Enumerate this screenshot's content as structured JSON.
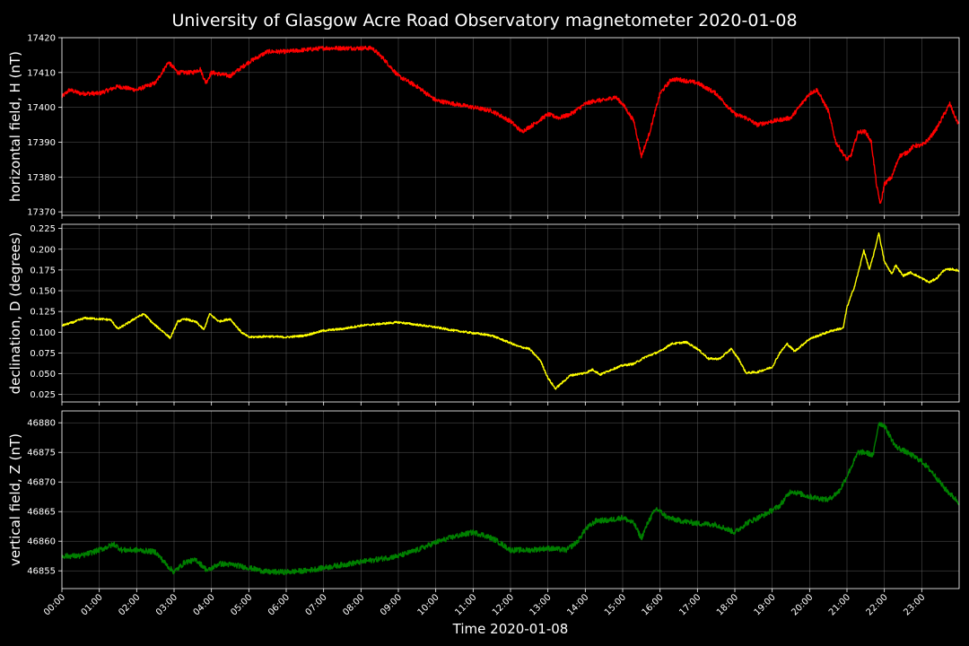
{
  "chart_data": {
    "type": "line",
    "title": "University of Glasgow Acre Road Observatory magnetometer 2020-01-08",
    "xlabel": "Time 2020-01-08",
    "x_ticks": [
      "00:00",
      "01:00",
      "02:00",
      "03:00",
      "04:00",
      "05:00",
      "06:00",
      "07:00",
      "08:00",
      "09:00",
      "10:00",
      "11:00",
      "12:00",
      "13:00",
      "14:00",
      "15:00",
      "16:00",
      "17:00",
      "18:00",
      "19:00",
      "20:00",
      "21:00",
      "22:00",
      "23:00"
    ],
    "xlim_hours": [
      0,
      24
    ],
    "grid": true,
    "panels": [
      {
        "name": "H",
        "ylabel": "horizontal field, H (nT)",
        "color": "#ff0000",
        "ylim": [
          17369,
          17420
        ],
        "yticks": [
          17370,
          17380,
          17390,
          17400,
          17410,
          17420
        ],
        "tick_format": 0,
        "noise": 0.6,
        "points": [
          [
            0,
            17403
          ],
          [
            0.2,
            17405
          ],
          [
            0.5,
            17404
          ],
          [
            1.0,
            17404
          ],
          [
            1.5,
            17406
          ],
          [
            2.0,
            17405
          ],
          [
            2.5,
            17407
          ],
          [
            2.85,
            17413
          ],
          [
            3.1,
            17410
          ],
          [
            3.5,
            17410
          ],
          [
            3.7,
            17411
          ],
          [
            3.85,
            17407
          ],
          [
            4.0,
            17410
          ],
          [
            4.5,
            17409
          ],
          [
            5.0,
            17413
          ],
          [
            5.5,
            17416
          ],
          [
            6.0,
            17416
          ],
          [
            7.0,
            17417
          ],
          [
            7.5,
            17417
          ],
          [
            8.0,
            17417
          ],
          [
            8.3,
            17417
          ],
          [
            8.6,
            17414
          ],
          [
            9.0,
            17409
          ],
          [
            9.5,
            17406
          ],
          [
            10.0,
            17402
          ],
          [
            10.5,
            17401
          ],
          [
            11.0,
            17400
          ],
          [
            11.5,
            17399
          ],
          [
            12.0,
            17396
          ],
          [
            12.3,
            17393
          ],
          [
            12.6,
            17395
          ],
          [
            13.0,
            17398
          ],
          [
            13.3,
            17397
          ],
          [
            13.6,
            17398
          ],
          [
            14.0,
            17401
          ],
          [
            14.3,
            17402
          ],
          [
            14.5,
            17402
          ],
          [
            14.8,
            17403
          ],
          [
            15.0,
            17401
          ],
          [
            15.3,
            17396
          ],
          [
            15.5,
            17386
          ],
          [
            15.7,
            17392
          ],
          [
            16.0,
            17404
          ],
          [
            16.3,
            17408
          ],
          [
            16.5,
            17408
          ],
          [
            17.0,
            17407
          ],
          [
            17.5,
            17404
          ],
          [
            18.0,
            17398
          ],
          [
            18.3,
            17397
          ],
          [
            18.6,
            17395
          ],
          [
            19.0,
            17396
          ],
          [
            19.5,
            17397
          ],
          [
            20.0,
            17404
          ],
          [
            20.2,
            17405
          ],
          [
            20.5,
            17399
          ],
          [
            20.7,
            17390
          ],
          [
            21.0,
            17385
          ],
          [
            21.1,
            17386
          ],
          [
            21.3,
            17393
          ],
          [
            21.5,
            17393
          ],
          [
            21.65,
            17390
          ],
          [
            21.8,
            17377
          ],
          [
            21.9,
            17372
          ],
          [
            22.0,
            17378
          ],
          [
            22.2,
            17380
          ],
          [
            22.4,
            17386
          ],
          [
            22.6,
            17387
          ],
          [
            22.8,
            17389
          ],
          [
            23.0,
            17389
          ],
          [
            23.2,
            17391
          ],
          [
            23.4,
            17394
          ],
          [
            23.6,
            17398
          ],
          [
            23.75,
            17401
          ],
          [
            23.9,
            17397
          ],
          [
            24.0,
            17395
          ]
        ]
      },
      {
        "name": "D",
        "ylabel": "declination, D (degrees)",
        "color": "#ffff00",
        "ylim": [
          0.016,
          0.23
        ],
        "yticks": [
          0.025,
          0.05,
          0.075,
          0.1,
          0.125,
          0.15,
          0.175,
          0.2,
          0.225
        ],
        "tick_format": 3,
        "noise": 0.0012,
        "points": [
          [
            0,
            0.108
          ],
          [
            0.3,
            0.112
          ],
          [
            0.6,
            0.117
          ],
          [
            1.0,
            0.116
          ],
          [
            1.3,
            0.115
          ],
          [
            1.5,
            0.104
          ],
          [
            1.8,
            0.112
          ],
          [
            2.0,
            0.118
          ],
          [
            2.2,
            0.122
          ],
          [
            2.45,
            0.11
          ],
          [
            2.7,
            0.101
          ],
          [
            2.9,
            0.093
          ],
          [
            3.1,
            0.113
          ],
          [
            3.3,
            0.116
          ],
          [
            3.6,
            0.112
          ],
          [
            3.8,
            0.103
          ],
          [
            3.95,
            0.122
          ],
          [
            4.2,
            0.113
          ],
          [
            4.5,
            0.116
          ],
          [
            4.8,
            0.1
          ],
          [
            5.0,
            0.094
          ],
          [
            5.5,
            0.095
          ],
          [
            6.0,
            0.094
          ],
          [
            6.5,
            0.096
          ],
          [
            7.0,
            0.102
          ],
          [
            7.5,
            0.104
          ],
          [
            8.0,
            0.108
          ],
          [
            8.5,
            0.11
          ],
          [
            9.0,
            0.112
          ],
          [
            9.5,
            0.109
          ],
          [
            10.0,
            0.106
          ],
          [
            10.5,
            0.102
          ],
          [
            11.0,
            0.099
          ],
          [
            11.5,
            0.096
          ],
          [
            12.0,
            0.087
          ],
          [
            12.2,
            0.083
          ],
          [
            12.5,
            0.08
          ],
          [
            12.8,
            0.066
          ],
          [
            13.0,
            0.045
          ],
          [
            13.2,
            0.032
          ],
          [
            13.4,
            0.04
          ],
          [
            13.6,
            0.048
          ],
          [
            14.0,
            0.051
          ],
          [
            14.2,
            0.055
          ],
          [
            14.4,
            0.049
          ],
          [
            14.7,
            0.055
          ],
          [
            15.0,
            0.06
          ],
          [
            15.3,
            0.062
          ],
          [
            15.6,
            0.07
          ],
          [
            16.0,
            0.077
          ],
          [
            16.3,
            0.086
          ],
          [
            16.7,
            0.088
          ],
          [
            17.0,
            0.08
          ],
          [
            17.3,
            0.068
          ],
          [
            17.6,
            0.068
          ],
          [
            17.9,
            0.08
          ],
          [
            18.1,
            0.068
          ],
          [
            18.3,
            0.051
          ],
          [
            18.6,
            0.052
          ],
          [
            19.0,
            0.058
          ],
          [
            19.2,
            0.075
          ],
          [
            19.4,
            0.086
          ],
          [
            19.6,
            0.077
          ],
          [
            20.0,
            0.092
          ],
          [
            20.3,
            0.097
          ],
          [
            20.6,
            0.102
          ],
          [
            20.9,
            0.105
          ],
          [
            21.0,
            0.13
          ],
          [
            21.2,
            0.155
          ],
          [
            21.35,
            0.18
          ],
          [
            21.45,
            0.199
          ],
          [
            21.6,
            0.175
          ],
          [
            21.75,
            0.2
          ],
          [
            21.85,
            0.22
          ],
          [
            22.0,
            0.185
          ],
          [
            22.2,
            0.17
          ],
          [
            22.3,
            0.181
          ],
          [
            22.5,
            0.168
          ],
          [
            22.7,
            0.172
          ],
          [
            23.0,
            0.165
          ],
          [
            23.2,
            0.16
          ],
          [
            23.4,
            0.165
          ],
          [
            23.6,
            0.175
          ],
          [
            23.8,
            0.176
          ],
          [
            24.0,
            0.174
          ]
        ]
      },
      {
        "name": "Z",
        "ylabel": "vertical field, Z (nT)",
        "color": "#008000",
        "ylim": [
          46852,
          46882
        ],
        "yticks": [
          46855,
          46860,
          46865,
          46870,
          46875,
          46880
        ],
        "tick_format": 0,
        "noise": 0.45,
        "points": [
          [
            0,
            46857.5
          ],
          [
            0.5,
            46857.5
          ],
          [
            1.0,
            46858.5
          ],
          [
            1.4,
            46859.5
          ],
          [
            1.6,
            46858.5
          ],
          [
            2.0,
            46858.5
          ],
          [
            2.5,
            46858.2
          ],
          [
            2.8,
            46856.0
          ],
          [
            3.0,
            46854.8
          ],
          [
            3.3,
            46856.5
          ],
          [
            3.6,
            46856.8
          ],
          [
            3.9,
            46855.0
          ],
          [
            4.2,
            46856.2
          ],
          [
            4.6,
            46856.0
          ],
          [
            5.0,
            46855.5
          ],
          [
            5.5,
            46854.8
          ],
          [
            6.0,
            46854.8
          ],
          [
            6.5,
            46855.0
          ],
          [
            7.0,
            46855.5
          ],
          [
            7.5,
            46856.0
          ],
          [
            8.0,
            46856.5
          ],
          [
            8.5,
            46857.0
          ],
          [
            9.0,
            46857.5
          ],
          [
            9.5,
            46858.5
          ],
          [
            10.0,
            46859.8
          ],
          [
            10.5,
            46860.8
          ],
          [
            11.0,
            46861.5
          ],
          [
            11.3,
            46861.0
          ],
          [
            11.6,
            46860.2
          ],
          [
            12.0,
            46858.5
          ],
          [
            12.5,
            46858.5
          ],
          [
            13.0,
            46858.8
          ],
          [
            13.5,
            46858.5
          ],
          [
            13.8,
            46860.0
          ],
          [
            14.0,
            46862.0
          ],
          [
            14.3,
            46863.5
          ],
          [
            14.6,
            46863.5
          ],
          [
            15.0,
            46864.0
          ],
          [
            15.3,
            46863.0
          ],
          [
            15.5,
            46860.5
          ],
          [
            15.7,
            46863.5
          ],
          [
            15.9,
            46865.5
          ],
          [
            16.2,
            46864.0
          ],
          [
            16.5,
            46863.5
          ],
          [
            17.0,
            46863.0
          ],
          [
            17.5,
            46862.8
          ],
          [
            18.0,
            46861.5
          ],
          [
            18.3,
            46863.0
          ],
          [
            18.8,
            46864.5
          ],
          [
            19.2,
            46866.0
          ],
          [
            19.5,
            46868.5
          ],
          [
            20.0,
            46867.5
          ],
          [
            20.5,
            46867.0
          ],
          [
            20.8,
            46868.5
          ],
          [
            21.0,
            46871.0
          ],
          [
            21.3,
            46875.0
          ],
          [
            21.5,
            46875.0
          ],
          [
            21.7,
            46874.5
          ],
          [
            21.85,
            46880.0
          ],
          [
            22.0,
            46879.5
          ],
          [
            22.3,
            46876.0
          ],
          [
            22.6,
            46875.0
          ],
          [
            23.0,
            46873.5
          ],
          [
            23.3,
            46871.5
          ],
          [
            23.6,
            46869.0
          ],
          [
            24.0,
            46866.5
          ]
        ]
      }
    ]
  }
}
